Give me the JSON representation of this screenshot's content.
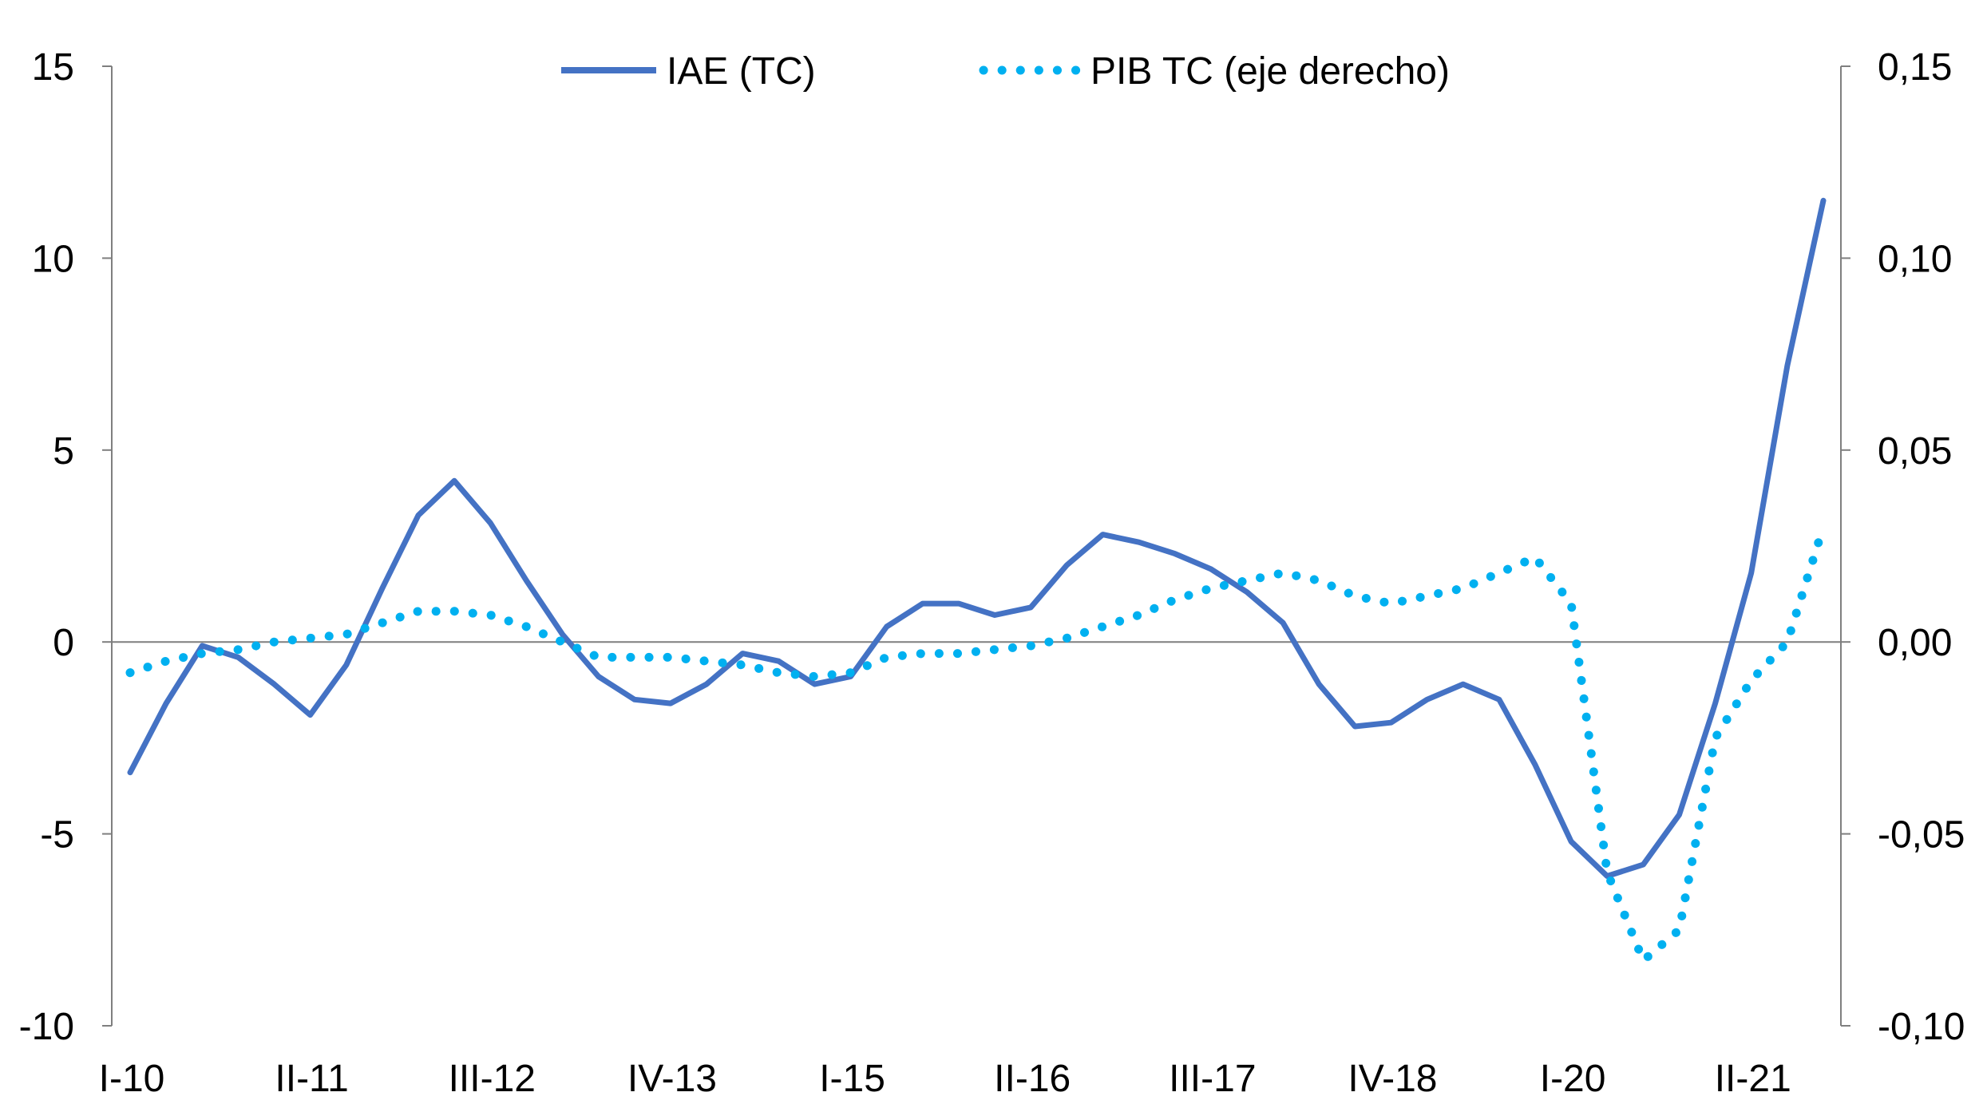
{
  "chart_data": {
    "type": "line",
    "title": "",
    "xlabel": "",
    "ylabel": "",
    "y2label": "",
    "x_tick_labels": [
      "I-10",
      "II-11",
      "III-12",
      "IV-13",
      "I-15",
      "II-16",
      "III-17",
      "IV-18",
      "I-20",
      "II-21"
    ],
    "y_left": {
      "lim": [
        -10,
        15
      ],
      "ticks": [
        15,
        10,
        5,
        0,
        -5,
        -10
      ],
      "tick_labels": [
        "15",
        "10",
        "5",
        "0",
        "-5",
        "-10"
      ]
    },
    "y_right": {
      "lim": [
        -0.1,
        0.15
      ],
      "ticks": [
        0.15,
        0.1,
        0.05,
        0.0,
        -0.05,
        -0.1
      ],
      "tick_labels": [
        "0,15",
        "0,10",
        "0,05",
        "0,00",
        "-0,05",
        "-0,10"
      ]
    },
    "x": [
      "I-10",
      "II-10",
      "III-10",
      "IV-10",
      "I-11",
      "II-11",
      "III-11",
      "IV-11",
      "I-12",
      "II-12",
      "III-12",
      "IV-12",
      "I-13",
      "II-13",
      "III-13",
      "IV-13",
      "I-14",
      "II-14",
      "III-14",
      "IV-14",
      "I-15",
      "II-15",
      "III-15",
      "IV-15",
      "I-16",
      "II-16",
      "III-16",
      "IV-16",
      "I-17",
      "II-17",
      "III-17",
      "IV-17",
      "I-18",
      "II-18",
      "III-18",
      "IV-18",
      "I-19",
      "II-19",
      "III-19",
      "IV-19",
      "I-20",
      "II-20",
      "III-20",
      "IV-20",
      "I-21",
      "II-21",
      "III-21",
      "IV-21"
    ],
    "series": [
      {
        "name": "IAE (TC)",
        "axis": "left",
        "style": "solid",
        "color": "#4472c4",
        "values": [
          -3.4,
          -1.6,
          -0.1,
          -0.4,
          -1.1,
          -1.9,
          -0.6,
          1.4,
          3.3,
          4.2,
          3.1,
          1.6,
          0.2,
          -0.9,
          -1.5,
          -1.6,
          -1.1,
          -0.3,
          -0.5,
          -1.1,
          -0.9,
          0.4,
          1.0,
          1.0,
          0.7,
          0.9,
          2.0,
          2.8,
          2.6,
          2.3,
          1.9,
          1.3,
          0.5,
          -1.1,
          -2.2,
          -2.1,
          -1.5,
          -1.1,
          -1.5,
          -3.2,
          -5.2,
          -6.1,
          -5.8,
          -4.5,
          -1.6,
          1.8,
          7.2,
          11.5
        ]
      },
      {
        "name": "PIB TC (eje derecho)",
        "axis": "right",
        "style": "dotted",
        "color": "#00b0f0",
        "values": [
          -0.008,
          -0.005,
          -0.003,
          -0.002,
          0.0,
          0.001,
          0.002,
          0.005,
          0.008,
          0.008,
          0.007,
          0.004,
          0.0,
          -0.004,
          -0.004,
          -0.004,
          -0.005,
          -0.006,
          -0.008,
          -0.009,
          -0.008,
          -0.004,
          -0.003,
          -0.003,
          -0.002,
          -0.001,
          0.001,
          0.004,
          0.007,
          0.011,
          0.014,
          0.016,
          0.018,
          0.016,
          0.012,
          0.01,
          0.012,
          0.014,
          0.018,
          0.022,
          0.01,
          -0.06,
          -0.083,
          -0.075,
          -0.025,
          -0.01,
          0.0,
          0.03
        ]
      }
    ],
    "legend": {
      "placement": "top-center"
    },
    "grid": false
  }
}
